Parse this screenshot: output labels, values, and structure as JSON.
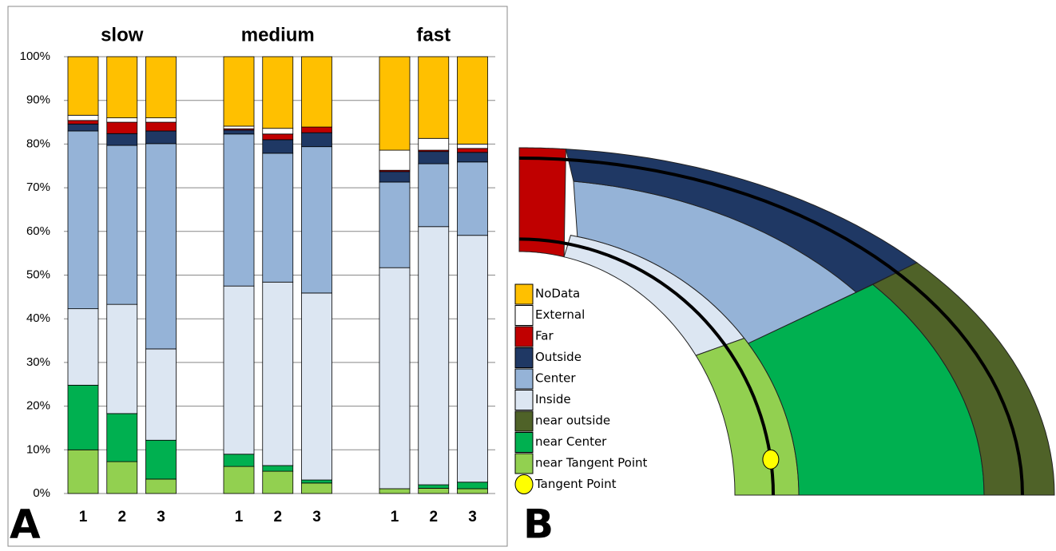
{
  "chart_data": {
    "type": "stacked_bar",
    "group_labels": [
      "slow",
      "medium",
      "fast"
    ],
    "categories": [
      "1",
      "2",
      "3",
      "1",
      "2",
      "3",
      "1",
      "2",
      "3"
    ],
    "series": [
      {
        "name": "near Tangent Point",
        "color": "#92d050",
        "values": [
          10,
          7.3,
          3.3,
          6.2,
          5.1,
          2.4,
          1.1,
          1.2,
          1.1
        ]
      },
      {
        "name": "near Center",
        "color": "#00b050",
        "values": [
          14.8,
          11,
          8.9,
          2.8,
          1.3,
          0.7,
          0,
          0.8,
          1.5
        ]
      },
      {
        "name": "near outside",
        "color": "#4f6228",
        "values": [
          0,
          0,
          0,
          0,
          0,
          0,
          0,
          0,
          0
        ]
      },
      {
        "name": "Inside",
        "color": "#dce6f2",
        "values": [
          17.5,
          25,
          20.9,
          38.5,
          42,
          42.8,
          50.6,
          59.1,
          56.5
        ]
      },
      {
        "name": "Center",
        "color": "#95b3d7",
        "values": [
          40.7,
          36.4,
          47,
          34.8,
          29.5,
          33.5,
          19.6,
          14.4,
          16.8
        ]
      },
      {
        "name": "Outside",
        "color": "#1f3864",
        "values": [
          1.6,
          2.7,
          2.9,
          0.9,
          3.1,
          3.2,
          2.4,
          2.8,
          2.2
        ]
      },
      {
        "name": "Far",
        "color": "#c00000",
        "values": [
          0.8,
          2.6,
          2,
          0.3,
          1.3,
          1.3,
          0.3,
          0.3,
          0.9
        ]
      },
      {
        "name": "External",
        "color": "#ffffff",
        "values": [
          1.2,
          1,
          1,
          0.6,
          1.3,
          0,
          4.6,
          2.7,
          1
        ]
      },
      {
        "name": "NoData",
        "color": "#ffc000",
        "values": [
          13.4,
          14,
          14,
          15.9,
          16.4,
          16.1,
          21.4,
          18.7,
          20
        ]
      }
    ],
    "ylim": [
      0,
      100
    ],
    "yticks": [
      {
        "value": 0,
        "label": "0%"
      },
      {
        "value": 10,
        "label": "10%"
      },
      {
        "value": 20,
        "label": "20%"
      },
      {
        "value": 30,
        "label": "30%"
      },
      {
        "value": 40,
        "label": "40%"
      },
      {
        "value": 50,
        "label": "50%"
      },
      {
        "value": 60,
        "label": "60%"
      },
      {
        "value": 70,
        "label": "70%"
      },
      {
        "value": 80,
        "label": "80%"
      },
      {
        "value": 90,
        "label": "90%"
      },
      {
        "value": 100,
        "label": "100%"
      }
    ],
    "grid": true
  },
  "panel_labels": [
    "A",
    "B"
  ],
  "diagram": {
    "tangent_point_label": "Tangent Point",
    "tangent_point_color": "#ffff00"
  }
}
